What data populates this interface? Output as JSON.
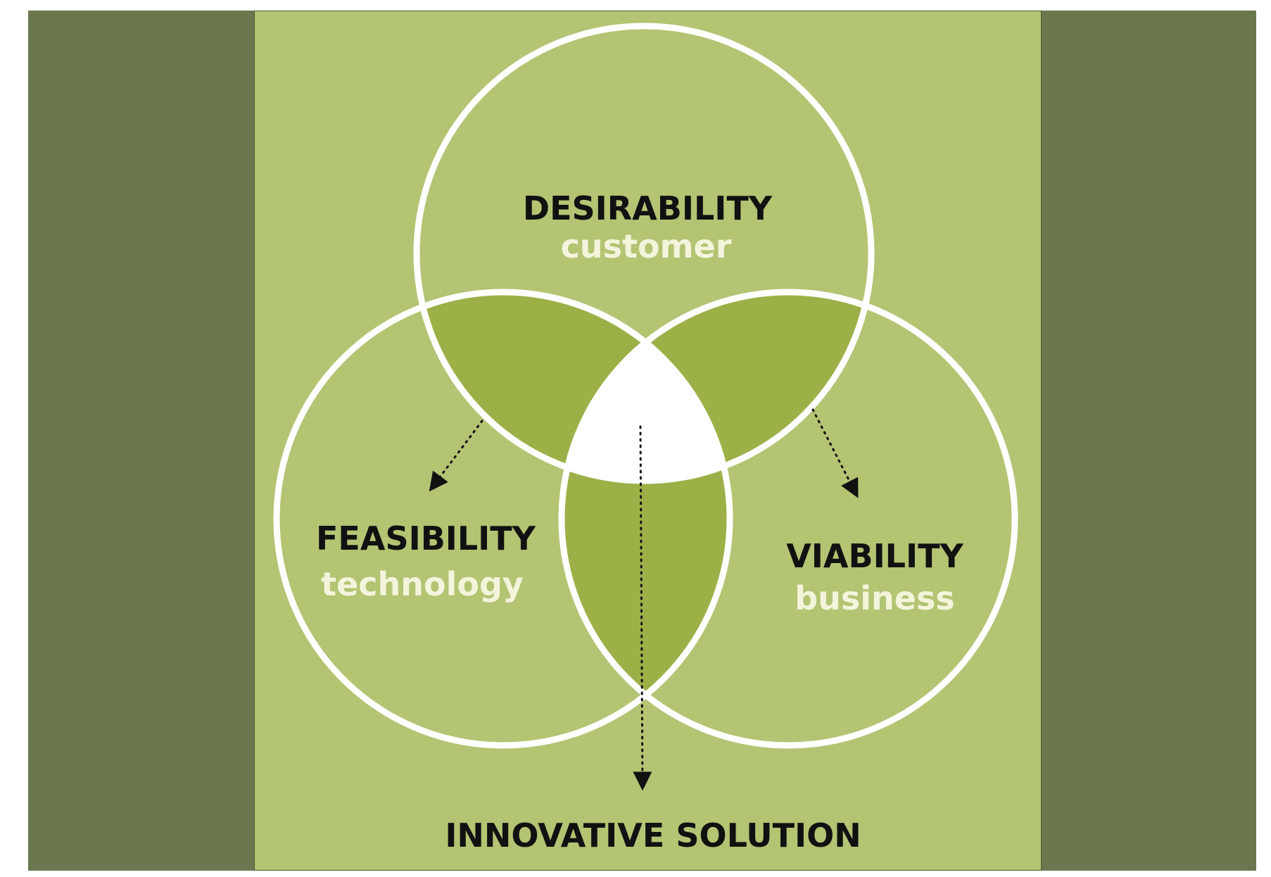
{
  "diagram": {
    "circles": {
      "desirability": {
        "title": "DESIRABILITY",
        "subtitle": "customer"
      },
      "feasibility": {
        "title": "FEASIBILITY",
        "subtitle": "technology"
      },
      "viability": {
        "title": "VIABILITY",
        "subtitle": "business"
      }
    },
    "result": "INNOVATIVE SOLUTION"
  },
  "colors": {
    "side_band": "#6b784f",
    "panel": "#b3c473",
    "overlap": "#9bb148",
    "outline": "#ffffff",
    "title_text": "#111111",
    "subtitle_text": "#f4f4dc"
  }
}
